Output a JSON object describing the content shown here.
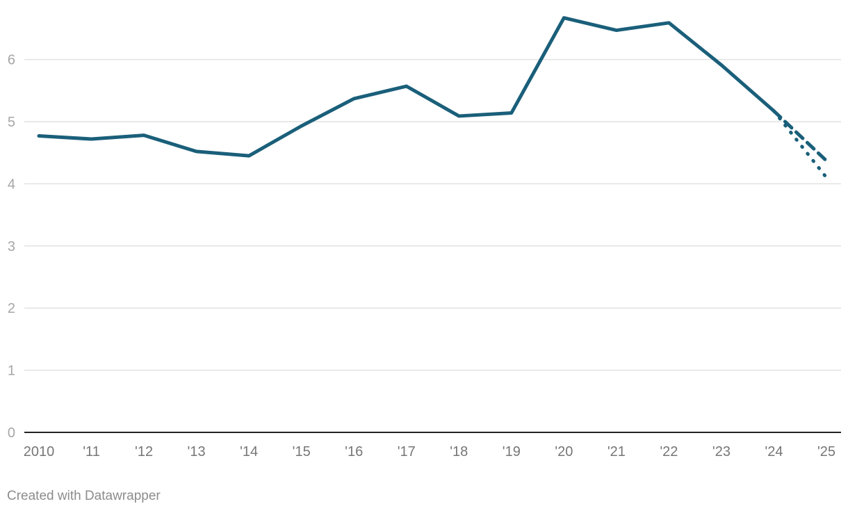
{
  "chart_data": {
    "type": "line",
    "title": "",
    "xlabel": "",
    "ylabel": "",
    "x": [
      2010,
      2011,
      2012,
      2013,
      2014,
      2015,
      2016,
      2017,
      2018,
      2019,
      2020,
      2021,
      2022,
      2023,
      2024
    ],
    "x_tick_labels": [
      "2010",
      "'11",
      "'12",
      "'13",
      "'14",
      "'15",
      "'16",
      "'17",
      "'18",
      "'19",
      "'20",
      "'21",
      "'22",
      "'23",
      "'24",
      "'25"
    ],
    "y_ticks": [
      0,
      1,
      2,
      3,
      4,
      5,
      6
    ],
    "xlim": [
      2010,
      2025
    ],
    "ylim": [
      0,
      6.7
    ],
    "grid": true,
    "series": [
      {
        "values": [
          4.77,
          4.72,
          4.78,
          4.52,
          4.45,
          4.93,
          5.37,
          5.57,
          5.09,
          5.14,
          6.67,
          6.47,
          6.59,
          5.91,
          5.17
        ],
        "color": "#1a5f7a",
        "style": "solid"
      }
    ],
    "projections": [
      {
        "x": [
          2024,
          2025
        ],
        "values": [
          5.17,
          4.37
        ],
        "color": "#1a5f7a",
        "style": "dashed"
      },
      {
        "x": [
          2024,
          2025
        ],
        "values": [
          5.17,
          4.1
        ],
        "color": "#1a5f7a",
        "style": "dotted"
      }
    ]
  },
  "footer": {
    "credit": "Created with Datawrapper"
  }
}
